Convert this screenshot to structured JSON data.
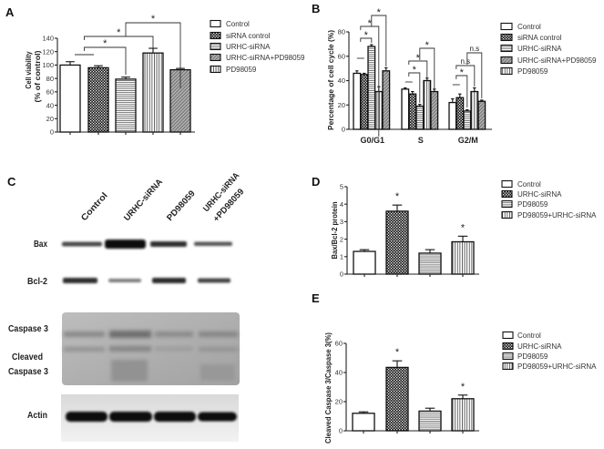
{
  "panels": {
    "A": "A",
    "B": "B",
    "C": "C",
    "D": "D",
    "E": "E"
  },
  "western_blot": {
    "panel": "C",
    "lanes": [
      "Control",
      "URHC-siRNA",
      "PD98059",
      [
        "URHC-siRNA",
        "+PD98059"
      ]
    ],
    "rows": {
      "bax": "Bax",
      "bcl2": "Bcl-2",
      "caspase3": "Caspase 3",
      "cleaved_line1": "Cleaved",
      "cleaved_line2": "Caspase 3",
      "actin": "Actin"
    }
  },
  "chart_data": [
    {
      "panel": "A",
      "type": "bar",
      "title": "",
      "ylabel": "Cell viability (% of control)",
      "ylabel_lines": [
        "Cell viability",
        "(% of control)"
      ],
      "xlabel": "",
      "ylim": [
        0,
        140
      ],
      "yticks": [
        0,
        20,
        40,
        60,
        80,
        100,
        120,
        140
      ],
      "categories": [
        "Control",
        "siRNA control",
        "URHC-siRNA",
        "PD98059",
        "URHC-siRNA+PD98059"
      ],
      "values": [
        100,
        96,
        79,
        118,
        93
      ],
      "errors": [
        5,
        3,
        3,
        7,
        2
      ],
      "bar_fills": [
        "white",
        "checker",
        "hlines",
        "vlines",
        "diag"
      ],
      "legend": [
        {
          "label": "Control",
          "fill": "white"
        },
        {
          "label": "siRNA control",
          "fill": "checker"
        },
        {
          "label": "URHC-siRNA",
          "fill": "hlines"
        },
        {
          "label": "URHC-siRNA+PD98059",
          "fill": "diag"
        },
        {
          "label": "PD98059",
          "fill": "vlines"
        }
      ],
      "legend_position": "right",
      "grid": false,
      "significance": [
        {
          "type": "dash",
          "from": 0,
          "to": 1,
          "label": ""
        },
        {
          "type": "bracket",
          "from": 0.5,
          "to": 2,
          "label": "*"
        },
        {
          "type": "bracket",
          "from": 0.5,
          "to": 3,
          "label": "*"
        },
        {
          "type": "bracket",
          "from": 2,
          "to": 4,
          "label": "*"
        }
      ]
    },
    {
      "panel": "B",
      "type": "bar",
      "title": "",
      "ylabel": "Percentage of cell cycle (%)",
      "xlabel": "",
      "ylim": [
        0,
        80
      ],
      "yticks": [
        0,
        20,
        40,
        60,
        80
      ],
      "categories": [
        "G0/G1",
        "S",
        "G2/M"
      ],
      "series": [
        {
          "name": "Control",
          "fill": "white",
          "values": [
            46,
            33,
            22
          ],
          "errors": [
            2,
            1,
            3
          ]
        },
        {
          "name": "siRNA control",
          "fill": "checker",
          "values": [
            45,
            29,
            26
          ],
          "errors": [
            1,
            2,
            3
          ]
        },
        {
          "name": "URHC-siRNA",
          "fill": "hlines",
          "values": [
            68,
            19,
            15
          ],
          "errors": [
            1.5,
            1.5,
            1
          ]
        },
        {
          "name": "PD98059",
          "fill": "vlines",
          "values": [
            31,
            40,
            31
          ],
          "errors": [
            4,
            2,
            3
          ]
        },
        {
          "name": "URHC-siRNA+PD98059",
          "fill": "diag",
          "values": [
            48,
            31,
            23
          ],
          "errors": [
            2.5,
            2,
            1
          ]
        }
      ],
      "legend": [
        {
          "label": "Control",
          "fill": "white"
        },
        {
          "label": "siRNA control",
          "fill": "checker"
        },
        {
          "label": "URHC-siRNA",
          "fill": "hlines"
        },
        {
          "label": "URHC-siRNA+PD98059",
          "fill": "diag"
        },
        {
          "label": "PD98059",
          "fill": "vlines"
        }
      ],
      "legend_position": "right",
      "grid": false,
      "significance": [
        {
          "group": 0,
          "type": "dash",
          "from": 0,
          "to": 1,
          "label": ""
        },
        {
          "group": 0,
          "type": "bracket",
          "from": 0.5,
          "to": 2,
          "label": "*"
        },
        {
          "group": 0,
          "type": "bracket",
          "from": 0.5,
          "to": 3,
          "label": "*"
        },
        {
          "group": 0,
          "type": "bracket",
          "from": 2,
          "to": 4,
          "label": "*"
        },
        {
          "group": 1,
          "type": "dash",
          "from": 0,
          "to": 1,
          "label": ""
        },
        {
          "group": 1,
          "type": "bracket",
          "from": 0.5,
          "to": 2,
          "label": "*"
        },
        {
          "group": 1,
          "type": "bracket",
          "from": 0.5,
          "to": 3,
          "label": "*"
        },
        {
          "group": 1,
          "type": "bracket",
          "from": 2,
          "to": 4,
          "label": "*"
        },
        {
          "group": 2,
          "type": "dash",
          "from": 0,
          "to": 1,
          "label": ""
        },
        {
          "group": 2,
          "type": "bracket",
          "from": 0.5,
          "to": 2,
          "label": "*"
        },
        {
          "group": 2,
          "type": "bracket",
          "from": 0.5,
          "to": 3,
          "label": "n.s"
        },
        {
          "group": 2,
          "type": "bracket",
          "from": 2,
          "to": 4,
          "label": "n.s"
        }
      ]
    },
    {
      "panel": "D",
      "type": "bar",
      "title": "",
      "ylabel": "Bax/Bcl-2 protein",
      "xlabel": "",
      "ylim": [
        0,
        5
      ],
      "yticks": [
        0,
        1,
        2,
        3,
        4,
        5
      ],
      "categories": [
        "Control",
        "URHC-siRNA",
        "PD98059",
        "PD98059+URHC-siRNA"
      ],
      "values": [
        1.3,
        3.6,
        1.2,
        1.85
      ],
      "errors": [
        0.1,
        0.35,
        0.2,
        0.32
      ],
      "bar_fills": [
        "white",
        "checker",
        "hlines",
        "vlines"
      ],
      "legend": [
        {
          "label": "Control",
          "fill": "white"
        },
        {
          "label": "URHC-siRNA",
          "fill": "checker"
        },
        {
          "label": "PD98059",
          "fill": "hlines"
        },
        {
          "label": "PD98059+URHC-siRNA",
          "fill": "vlines"
        }
      ],
      "legend_position": "right",
      "grid": false,
      "significance": [
        {
          "bar": 1,
          "label": "*"
        },
        {
          "bar": 3,
          "label": "*"
        }
      ]
    },
    {
      "panel": "E",
      "type": "bar",
      "title": "",
      "ylabel": "Cleaved Caspase 3/Caspase 3(%)",
      "xlabel": "",
      "ylim": [
        0,
        60
      ],
      "yticks": [
        0,
        20,
        40,
        60
      ],
      "categories": [
        "Control",
        "URHC-siRNA",
        "PD98059",
        "PD98059+URHC-siRNA"
      ],
      "values": [
        12,
        43.5,
        13.5,
        22
      ],
      "errors": [
        1,
        4.5,
        2,
        2.5
      ],
      "bar_fills": [
        "white",
        "checker",
        "hlines",
        "vlines"
      ],
      "legend": [
        {
          "label": "Control",
          "fill": "white"
        },
        {
          "label": "URHC-siRNA",
          "fill": "checker"
        },
        {
          "label": "PD98059",
          "fill": "hlines"
        },
        {
          "label": "PD98059+URHC-siRNA",
          "fill": "vlines"
        }
      ],
      "legend_position": "right",
      "grid": false,
      "significance": [
        {
          "bar": 1,
          "label": "*"
        },
        {
          "bar": 3,
          "label": "*"
        }
      ]
    }
  ]
}
